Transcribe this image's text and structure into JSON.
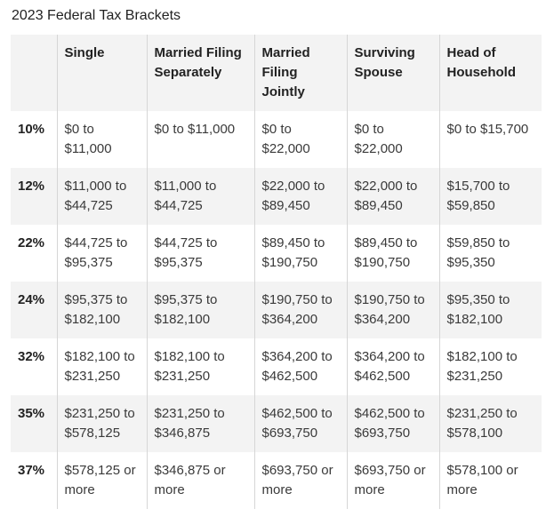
{
  "title": "2023 Federal Tax Brackets",
  "table": {
    "headers": [
      "",
      "Single",
      "Married Filing Separately",
      "Married Filing Jointly",
      "Surviving Spouse",
      "Head of Household"
    ],
    "rows": [
      [
        "10%",
        "$0 to $11,000",
        "$0 to $11,000",
        "$0 to $22,000",
        "$0 to $22,000",
        "$0 to $15,700"
      ],
      [
        "12%",
        "$11,000 to $44,725",
        "$11,000 to $44,725",
        "$22,000 to $89,450",
        "$22,000 to $89,450",
        "$15,700 to $59,850"
      ],
      [
        "22%",
        "$44,725 to $95,375",
        "$44,725 to $95,375",
        "$89,450 to $190,750",
        "$89,450 to $190,750",
        "$59,850 to $95,350"
      ],
      [
        "24%",
        "$95,375 to $182,100",
        "$95,375 to $182,100",
        "$190,750 to $364,200",
        "$190,750 to $364,200",
        "$95,350 to $182,100"
      ],
      [
        "32%",
        "$182,100 to $231,250",
        "$182,100 to $231,250",
        "$364,200 to $462,500",
        "$364,200 to $462,500",
        "$182,100 to $231,250"
      ],
      [
        "35%",
        "$231,250 to $578,125",
        "$231,250 to $346,875",
        "$462,500 to $693,750",
        "$462,500 to $693,750",
        "$231,250 to $578,100"
      ],
      [
        "37%",
        "$578,125 or more",
        "$346,875 or more",
        "$693,750 or more",
        "$693,750 or more",
        "$578,100 or more"
      ]
    ]
  }
}
